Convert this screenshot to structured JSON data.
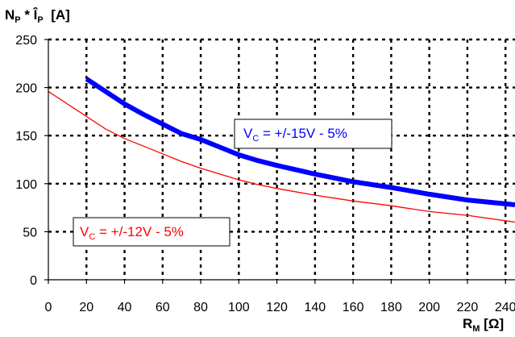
{
  "chart_data": {
    "type": "line",
    "ylabel": {
      "main": "N",
      "sub": "P",
      "mid": " * Î",
      "sub2": "P",
      "unit": "  [A]"
    },
    "xlabel": {
      "main": "R",
      "sub": "M",
      "unit": " [Ω]"
    },
    "xlim": [
      0,
      245
    ],
    "ylim": [
      0,
      250
    ],
    "x_ticks": [
      0,
      20,
      40,
      60,
      80,
      100,
      120,
      140,
      160,
      180,
      200,
      220,
      240
    ],
    "y_ticks": [
      0,
      50,
      100,
      150,
      200,
      250
    ],
    "grid": true,
    "series": [
      {
        "name": "V_C = +/-15V - 5%",
        "label_parts": {
          "main": "V",
          "sub": "C",
          "rest": " = +/-15V - 5%"
        },
        "color": "#0000ff",
        "x": [
          20,
          30,
          40,
          50,
          60,
          70,
          80,
          90,
          100,
          110,
          120,
          140,
          160,
          180,
          200,
          220,
          245
        ],
        "y": [
          209,
          196,
          183,
          172,
          162,
          152,
          146,
          138,
          130,
          124,
          119,
          110,
          102,
          96,
          89,
          83,
          78
        ]
      },
      {
        "name": "V_C = +/-12V - 5%",
        "label_parts": {
          "main": "V",
          "sub": "C",
          "rest": " = +/-12V - 5%"
        },
        "color": "#ff0000",
        "x": [
          0,
          10,
          20,
          30,
          40,
          50,
          60,
          70,
          80,
          90,
          100,
          110,
          120,
          140,
          160,
          180,
          200,
          220,
          245
        ],
        "y": [
          196,
          183,
          170,
          157,
          147,
          139,
          131,
          123,
          116,
          110,
          104,
          99,
          95,
          88,
          82,
          77,
          71,
          67,
          60
        ]
      }
    ]
  }
}
